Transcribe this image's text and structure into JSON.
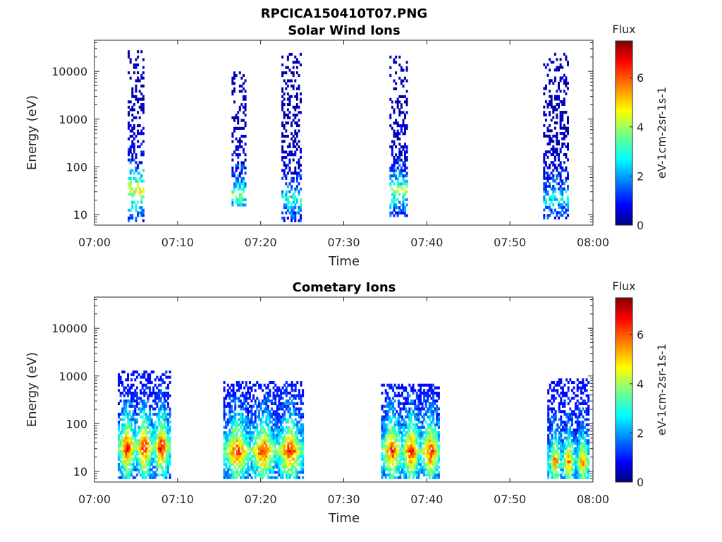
{
  "figure": {
    "title": "RPCICA150410T07.PNG"
  },
  "chart_data": [
    {
      "type": "heatmap",
      "title": "Solar Wind Ions",
      "xlabel": "Time",
      "ylabel": "Energy (eV)",
      "y_scale": "log",
      "x_range_min": [
        0,
        60
      ],
      "y_range_eV": [
        6,
        45000
      ],
      "x_tick_labels": [
        "07:00",
        "07:10",
        "07:20",
        "07:30",
        "07:40",
        "07:50",
        "08:00"
      ],
      "y_ticks": [
        10,
        100,
        1000,
        10000
      ],
      "y_tick_labels": [
        "10",
        "100",
        "1000",
        "10000"
      ],
      "colorbar": {
        "label": "Flux",
        "unit": "eV-1cm-2sr-1s-1",
        "range": [
          0,
          7.5
        ],
        "ticks": [
          0,
          2,
          4,
          6
        ],
        "tick_labels": [
          "0",
          "2",
          "4",
          "6"
        ],
        "colormap": "jet"
      },
      "bursts": [
        {
          "start": 4.0,
          "end": 5.8,
          "emin": 7,
          "emax": 25000,
          "peak_energy": 30,
          "peak_flux": 4.8
        },
        {
          "start": 16.5,
          "end": 18.2,
          "emin": 15,
          "emax": 9000,
          "peak_energy": 25,
          "peak_flux": 3.8
        },
        {
          "start": 22.5,
          "end": 24.8,
          "emin": 7,
          "emax": 22000,
          "peak_energy": 20,
          "peak_flux": 3.2
        },
        {
          "start": 35.5,
          "end": 37.5,
          "emin": 9,
          "emax": 21000,
          "peak_energy": 30,
          "peak_flux": 4.0
        },
        {
          "start": 54.0,
          "end": 57.0,
          "emin": 8,
          "emax": 24000,
          "peak_energy": 20,
          "peak_flux": 2.8
        }
      ]
    },
    {
      "type": "heatmap",
      "title": "Cometary Ions",
      "xlabel": "Time",
      "ylabel": "Energy (eV)",
      "y_scale": "log",
      "x_range_min": [
        0,
        60
      ],
      "y_range_eV": [
        6,
        45000
      ],
      "x_tick_labels": [
        "07:00",
        "07:10",
        "07:20",
        "07:30",
        "07:40",
        "07:50",
        "08:00"
      ],
      "y_ticks": [
        10,
        100,
        1000,
        10000
      ],
      "y_tick_labels": [
        "10",
        "100",
        "1000",
        "10000"
      ],
      "colorbar": {
        "label": "Flux",
        "unit": "eV-1cm-2sr-1s-1",
        "range": [
          0,
          7.5
        ],
        "ticks": [
          0,
          2,
          4,
          6
        ],
        "tick_labels": [
          "0",
          "2",
          "4",
          "6"
        ],
        "colormap": "jet"
      },
      "bursts": [
        {
          "start": 2.8,
          "end": 9.0,
          "emin": 7,
          "emax": 1200,
          "peak_energy": 30,
          "peak_flux": 6.8
        },
        {
          "start": 15.5,
          "end": 25.0,
          "emin": 7,
          "emax": 700,
          "peak_energy": 25,
          "peak_flux": 6.5
        },
        {
          "start": 34.5,
          "end": 41.5,
          "emin": 7,
          "emax": 650,
          "peak_energy": 25,
          "peak_flux": 6.6
        },
        {
          "start": 54.5,
          "end": 59.5,
          "emin": 7,
          "emax": 800,
          "peak_energy": 15,
          "peak_flux": 5.6
        }
      ]
    }
  ]
}
